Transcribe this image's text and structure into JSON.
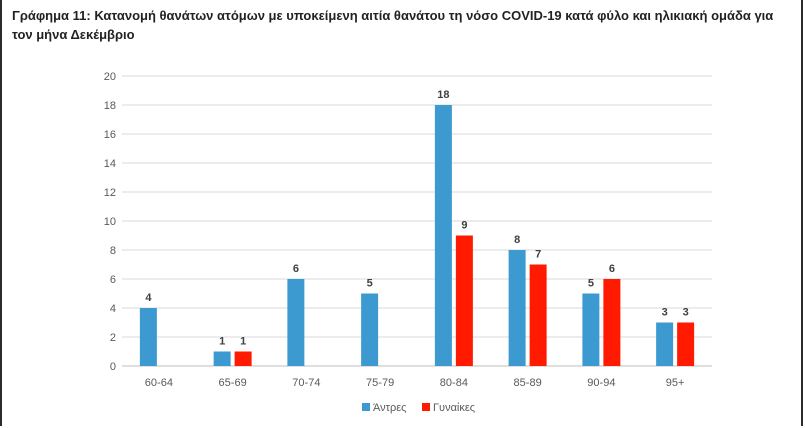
{
  "chart_data": {
    "type": "bar",
    "title": "Γράφημα 11: Κατανομή θανάτων ατόμων με υποκείμενη αιτία θανάτου τη νόσο COVID-19 κατά φύλο και ηλικιακή ομάδα για τον μήνα Δεκέμβριο",
    "categories": [
      "60-64",
      "65-69",
      "70-74",
      "75-79",
      "80-84",
      "85-89",
      "90-94",
      "95+"
    ],
    "series": [
      {
        "name": "Άντρες",
        "color": "#3D9AD1",
        "values": [
          4,
          1,
          6,
          5,
          18,
          8,
          5,
          3
        ]
      },
      {
        "name": "Γυναίκες",
        "color": "#FF1A00",
        "values": [
          null,
          1,
          null,
          null,
          9,
          7,
          6,
          3
        ]
      }
    ],
    "ylim": [
      0,
      20
    ],
    "yticks": [
      0,
      2,
      4,
      6,
      8,
      10,
      12,
      14,
      16,
      18,
      20
    ],
    "grid": true,
    "legend_position": "bottom"
  }
}
